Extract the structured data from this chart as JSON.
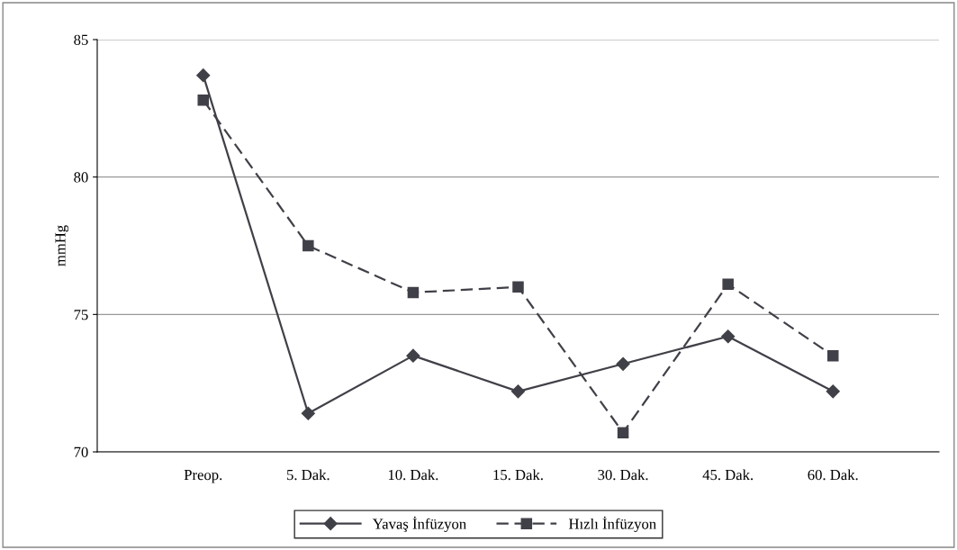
{
  "chart_data": {
    "type": "line",
    "ylabel": "mmHg",
    "categories": [
      "Preop.",
      "5. Dak.",
      "10. Dak.",
      "15. Dak.",
      "30. Dak.",
      "45. Dak.",
      "60. Dak."
    ],
    "series": [
      {
        "name": "Yavaş İnfüzyon",
        "color": "#404048",
        "marker": "diamond",
        "line_style": "solid",
        "values": [
          83.7,
          71.4,
          73.5,
          72.2,
          73.2,
          74.2,
          72.2
        ]
      },
      {
        "name": "Hızlı İnfüzyon",
        "color": "#404048",
        "marker": "square",
        "line_style": "dashed",
        "values": [
          82.8,
          77.5,
          75.8,
          76.0,
          70.7,
          76.1,
          73.5
        ]
      }
    ],
    "ylim": [
      70,
      85
    ],
    "yticks": [
      70,
      75,
      80,
      85
    ],
    "grid": "y",
    "legend": "bottom"
  }
}
